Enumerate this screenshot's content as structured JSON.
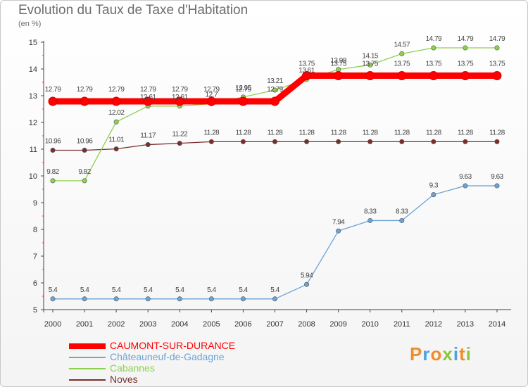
{
  "chart_data": {
    "type": "line",
    "title": "Evolution du Taux de Taxe d'Habitation",
    "subtitle": "(en %)",
    "x": [
      "2000",
      "2001",
      "2002",
      "2003",
      "2004",
      "2005",
      "2006",
      "2007",
      "2008",
      "2009",
      "2010",
      "2011",
      "2012",
      "2013",
      "2014"
    ],
    "ylim": [
      5,
      15
    ],
    "yticks": [
      5,
      6,
      7,
      8,
      9,
      10,
      11,
      12,
      13,
      14,
      15
    ],
    "grid": false,
    "legend_position": "bottom-left",
    "series": [
      {
        "name": "CAUMONT-SUR-DURANCE",
        "color": "#ff0000",
        "values": [
          12.79,
          12.79,
          12.79,
          12.79,
          12.79,
          12.79,
          12.79,
          12.79,
          13.75,
          13.75,
          13.75,
          13.75,
          13.75,
          13.75,
          13.75
        ],
        "labels": [
          "12.79",
          "12.79",
          "12.79",
          "12.79",
          "12.79",
          "12.79",
          "12.79",
          "12.79",
          "13.75",
          "13.75",
          "13.75",
          "13.75",
          "13.75",
          "13.75",
          "13.75"
        ]
      },
      {
        "name": "Châteauneuf-de-Gadagne",
        "color": "#6ba3d6",
        "values": [
          5.4,
          5.4,
          5.4,
          5.4,
          5.4,
          5.4,
          5.4,
          5.4,
          5.94,
          7.94,
          8.33,
          8.33,
          9.3,
          9.63,
          9.63
        ],
        "labels": [
          "5.4",
          "5.4",
          "5.4",
          "5.4",
          "5.4",
          "5.4",
          "5.4",
          "5.4",
          "5.94",
          "7.94",
          "8.33",
          "8.33",
          "9.3",
          "9.63",
          "9.63"
        ]
      },
      {
        "name": "Cabannes",
        "color": "#8fd14f",
        "values": [
          9.82,
          9.82,
          12.02,
          12.61,
          12.61,
          12.7,
          12.95,
          13.21,
          13.61,
          13.98,
          14.15,
          14.57,
          14.79,
          14.79,
          14.79
        ],
        "labels": [
          "9.82",
          "9.82",
          "12.02",
          "12.61",
          "12.61",
          "12.7",
          "12.95",
          "13.21",
          "13.61",
          "13.98",
          "14.15",
          "14.57",
          "14.79",
          "14.79",
          "14.79"
        ]
      },
      {
        "name": "Noves",
        "color": "#7a2e2e",
        "values": [
          10.96,
          10.96,
          11.01,
          11.17,
          11.22,
          11.28,
          11.28,
          11.28,
          11.28,
          11.28,
          11.28,
          11.28,
          11.28,
          11.28,
          11.28
        ],
        "labels": [
          "10.96",
          "10.96",
          "11.01",
          "11.17",
          "11.22",
          "11.28",
          "11.28",
          "11.28",
          "11.28",
          "11.28",
          "11.28",
          "11.28",
          "11.28",
          "11.28",
          "11.28"
        ]
      }
    ]
  },
  "logo": {
    "text": "Proxiti",
    "colors": [
      "#f28c28",
      "#4aa3df",
      "#f28c28",
      "#8cc63f",
      "#4aa3df",
      "#f28c28",
      "#8cc63f"
    ]
  }
}
